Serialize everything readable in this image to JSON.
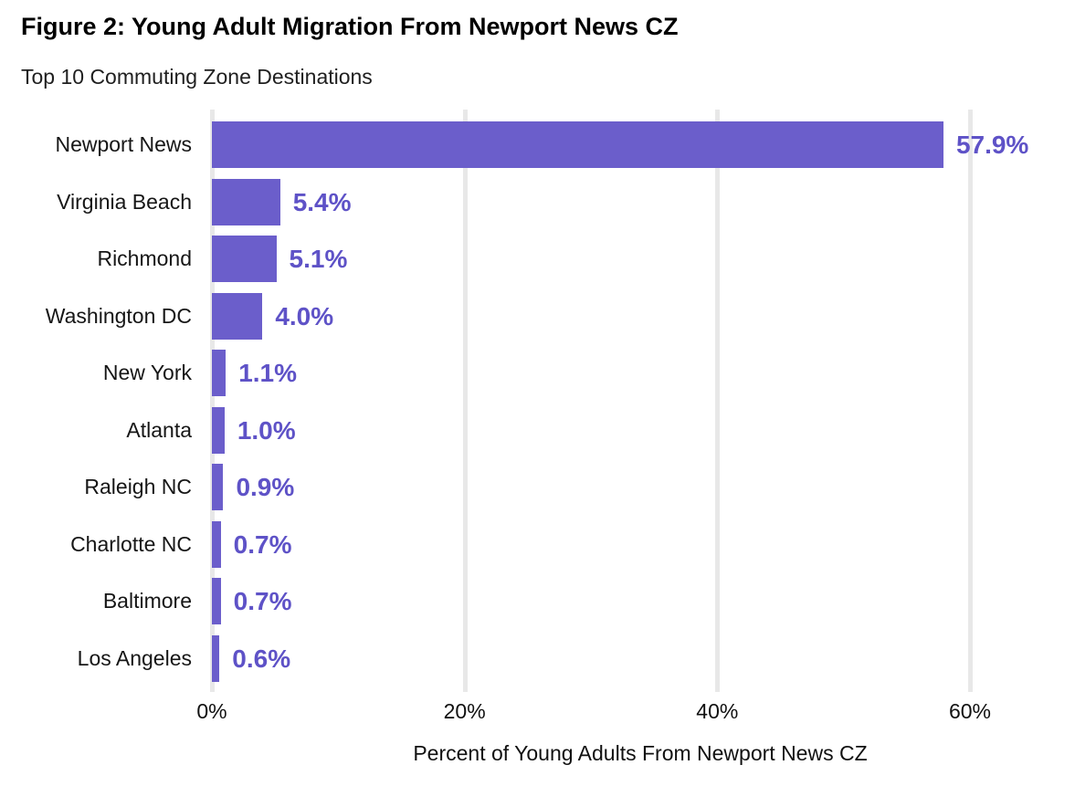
{
  "figure": {
    "title": "Figure 2: Young Adult Migration From Newport News CZ",
    "subtitle": "Top 10 Commuting Zone Destinations"
  },
  "chart_data": {
    "type": "bar",
    "orientation": "horizontal",
    "title": "Figure 2: Young Adult Migration From Newport News CZ",
    "subtitle": "Top 10 Commuting Zone Destinations",
    "categories": [
      "Newport News",
      "Virginia Beach",
      "Richmond",
      "Washington DC",
      "New York",
      "Atlanta",
      "Raleigh NC",
      "Charlotte NC",
      "Baltimore",
      "Los Angeles"
    ],
    "values": [
      57.9,
      5.4,
      5.1,
      4.0,
      1.1,
      1.0,
      0.9,
      0.7,
      0.7,
      0.6
    ],
    "value_labels": [
      "57.9%",
      "5.4%",
      "5.1%",
      "4.0%",
      "1.1%",
      "1.0%",
      "0.9%",
      "0.7%",
      "0.7%",
      "0.6%"
    ],
    "xlabel": "Percent of Young Adults From Newport News CZ",
    "ylabel": "",
    "x_ticks": [
      "0%",
      "20%",
      "40%",
      "60%"
    ],
    "x_tick_values": [
      0,
      20,
      40,
      60
    ],
    "xlim": [
      0,
      67.8
    ],
    "grid": "vertical-gridlines",
    "legend": "none",
    "colors": {
      "bar": "#6b5ecb",
      "value_label": "#5e52c7",
      "gridline": "#e8e8e8",
      "title": "#000000",
      "axis_text": "#111111"
    }
  }
}
